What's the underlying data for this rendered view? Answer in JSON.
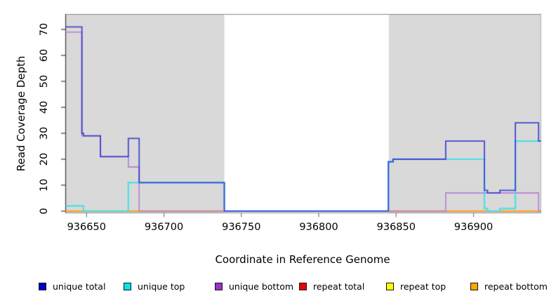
{
  "chart_data": {
    "type": "line",
    "subtype": "step-coverage",
    "title": "",
    "xlabel": "Coordinate in Reference Genome",
    "ylabel": "Read Coverage Depth",
    "xlim": [
      936636.5,
      936943.5
    ],
    "ylim": [
      0,
      76
    ],
    "x_ticks": [
      936650,
      936700,
      936750,
      936800,
      936850,
      936900
    ],
    "y_ticks": [
      0,
      10,
      20,
      30,
      40,
      50,
      60,
      70
    ],
    "grid": false,
    "highlight_color": "#d9d9d9",
    "highlight_regions": [
      [
        936636.5,
        936739
      ],
      [
        936845,
        936943.5
      ]
    ],
    "series": [
      {
        "name": "repeat total",
        "color": "#dd4466",
        "alpha": 0.9,
        "width": 1.4,
        "steps": [
          [
            936636.5,
            0
          ]
        ]
      },
      {
        "name": "repeat top",
        "color": "#f2e43a",
        "alpha": 0.9,
        "width": 1.4,
        "steps": [
          [
            936636.5,
            0
          ]
        ]
      },
      {
        "name": "repeat bottom",
        "color": "#ff9d1c",
        "alpha": 0.95,
        "width": 1.8,
        "steps": [
          [
            936636.5,
            0
          ]
        ]
      },
      {
        "name": "unique bottom",
        "color": "#b173d6",
        "alpha": 0.9,
        "width": 1.6,
        "steps": [
          [
            936636.5,
            69
          ],
          [
            936647,
            29
          ],
          [
            936659,
            21
          ],
          [
            936677,
            17
          ],
          [
            936684,
            0
          ],
          [
            936882,
            7
          ],
          [
            936942,
            0
          ]
        ]
      },
      {
        "name": "unique top",
        "color": "#35dfe8",
        "alpha": 0.85,
        "width": 2.2,
        "steps": [
          [
            936636.5,
            2
          ],
          [
            936648,
            0
          ],
          [
            936677,
            11
          ],
          [
            936739,
            0
          ],
          [
            936845,
            19
          ],
          [
            936848,
            20
          ],
          [
            936907,
            1
          ],
          [
            936909,
            0
          ],
          [
            936917,
            1
          ],
          [
            936927,
            27
          ]
        ]
      },
      {
        "name": "unique total",
        "color": "#2d34cf",
        "alpha": 0.88,
        "width": 1.8,
        "steps": [
          [
            936636.5,
            71
          ],
          [
            936647,
            30
          ],
          [
            936648,
            29
          ],
          [
            936659,
            21
          ],
          [
            936677,
            28
          ],
          [
            936684,
            11
          ],
          [
            936739,
            0
          ],
          [
            936845,
            19
          ],
          [
            936848,
            20
          ],
          [
            936882,
            27
          ],
          [
            936907,
            8
          ],
          [
            936909,
            7
          ],
          [
            936917,
            8
          ],
          [
            936927,
            34
          ],
          [
            936942,
            27
          ]
        ]
      }
    ],
    "legend": [
      {
        "label": "unique total",
        "color": "#0000cd"
      },
      {
        "label": "unique top",
        "color": "#00e5ee"
      },
      {
        "label": "unique bottom",
        "color": "#9932cc"
      },
      {
        "label": "repeat total",
        "color": "#ee0000"
      },
      {
        "label": "repeat top",
        "color": "#ffff00"
      },
      {
        "label": "repeat bottom",
        "color": "#ffa500"
      }
    ],
    "legend_position": "bottom"
  }
}
